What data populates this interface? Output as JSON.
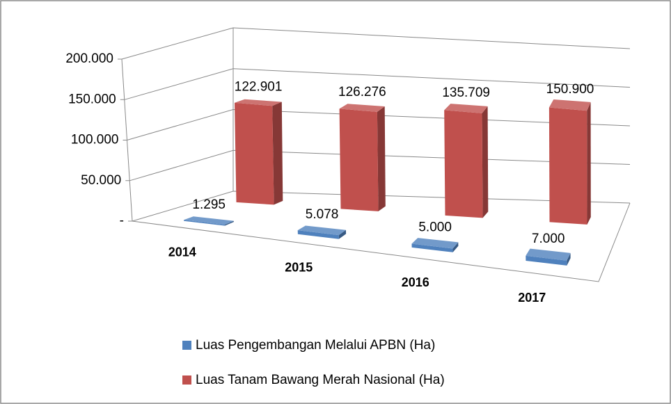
{
  "chart_data": {
    "type": "bar3d",
    "categories": [
      "2014",
      "2015",
      "2016",
      "2017"
    ],
    "series": [
      {
        "name": "Luas Pengembangan Melalui APBN (Ha)",
        "color": "#4f81bd",
        "values": [
          1295,
          5078,
          5000,
          7000
        ],
        "value_labels": [
          "1.295",
          "5.078",
          "5.000",
          "7.000"
        ]
      },
      {
        "name": "Luas Tanam Bawang Merah Nasional (Ha)",
        "color": "#c0504d",
        "values": [
          122901,
          126276,
          135709,
          150900
        ],
        "value_labels": [
          "122.901",
          "126.276",
          "135.709",
          "150.900"
        ]
      }
    ],
    "ylim": [
      0,
      200000
    ],
    "yticks": [
      {
        "value": 0,
        "label": "-"
      },
      {
        "value": 50000,
        "label": "50.000"
      },
      {
        "value": 100000,
        "label": "100.000"
      },
      {
        "value": 150000,
        "label": "150.000"
      },
      {
        "value": 200000,
        "label": "200.000"
      }
    ],
    "grid": true,
    "legend": "bottom"
  }
}
